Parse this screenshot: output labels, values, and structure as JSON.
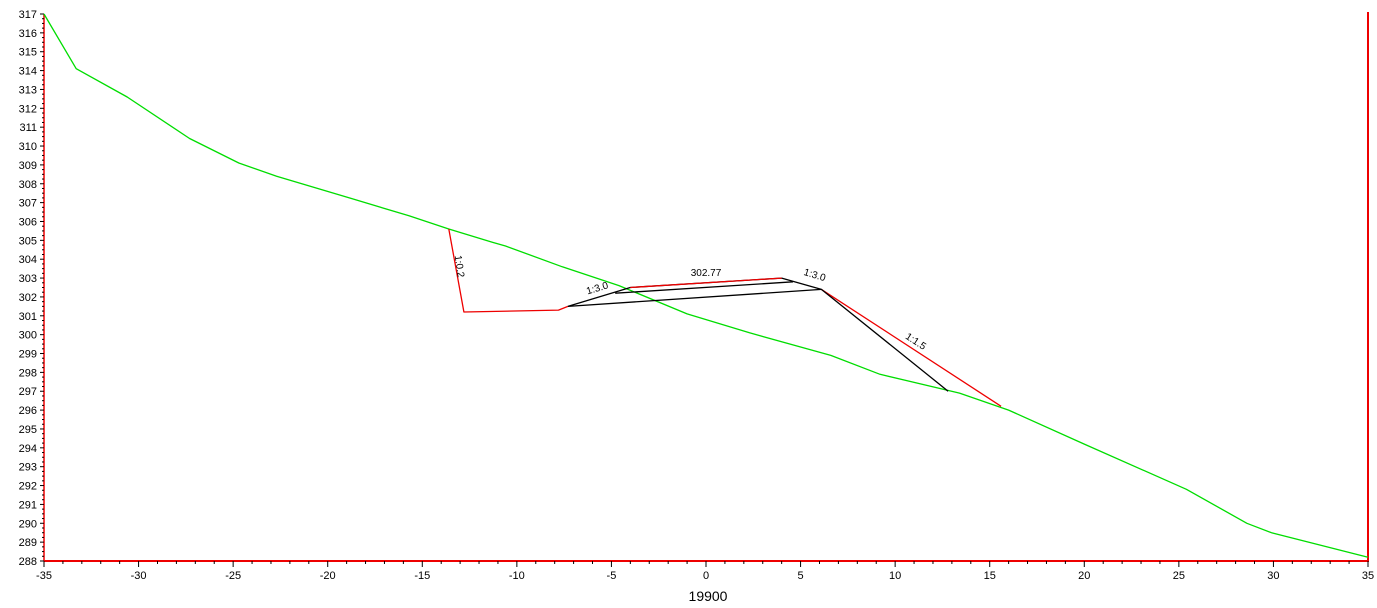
{
  "chart_data": {
    "type": "line",
    "title": "",
    "xlabel": "19900",
    "ylabel": "",
    "xlim": [
      -35,
      35
    ],
    "ylim": [
      288,
      317
    ],
    "xticks": [
      -35,
      -30,
      -25,
      -20,
      -15,
      -10,
      -5,
      0,
      5,
      10,
      15,
      20,
      25,
      30,
      35
    ],
    "yticks": [
      288,
      289,
      290,
      291,
      292,
      293,
      294,
      295,
      296,
      297,
      298,
      299,
      300,
      301,
      302,
      303,
      304,
      305,
      306,
      307,
      308,
      309,
      310,
      311,
      312,
      313,
      314,
      315,
      316,
      317
    ],
    "grid": false,
    "colors": {
      "ground": "#00dd00",
      "design_red": "#ee0000",
      "structure": "#000000",
      "axes": "#ee0000"
    },
    "series": [
      {
        "key": "ground",
        "color": "#00dd00",
        "points": [
          [
            -35,
            317
          ],
          [
            -33.3,
            314.1
          ],
          [
            -30.6,
            312.6
          ],
          [
            -27.3,
            310.4
          ],
          [
            -24.7,
            309.1
          ],
          [
            -22.7,
            308.4
          ],
          [
            -18.7,
            307.2
          ],
          [
            -15.7,
            306.3
          ],
          [
            -13.6,
            305.6
          ],
          [
            -11.3,
            304.9
          ],
          [
            -10.6,
            304.7
          ],
          [
            -7.6,
            303.6
          ],
          [
            -4.6,
            302.6
          ],
          [
            -1.0,
            301.1
          ],
          [
            2.3,
            300.1
          ],
          [
            6.6,
            298.9
          ],
          [
            9.2,
            297.9
          ],
          [
            13.4,
            296.9
          ],
          [
            16.0,
            296.0
          ],
          [
            20.0,
            294.2
          ],
          [
            25.4,
            291.8
          ],
          [
            28.6,
            290.0
          ],
          [
            29.9,
            289.5
          ],
          [
            35,
            288.2
          ]
        ]
      },
      {
        "key": "left-cut",
        "color": "#ee0000",
        "points": [
          [
            -13.6,
            305.6
          ],
          [
            -12.8,
            301.2
          ],
          [
            -7.8,
            301.3
          ],
          [
            -7.3,
            301.5
          ]
        ]
      },
      {
        "key": "right-fill",
        "color": "#ee0000",
        "points": [
          [
            6.1,
            302.4
          ],
          [
            15.6,
            296.2
          ]
        ]
      },
      {
        "key": "road-top",
        "color": "#000000",
        "points": [
          [
            -7.3,
            301.5
          ],
          [
            -4.0,
            302.5
          ],
          [
            4.0,
            303.0
          ],
          [
            6.1,
            302.4
          ],
          [
            12.8,
            297.0
          ]
        ]
      },
      {
        "key": "road-top-red",
        "color": "#ee0000",
        "points": [
          [
            -4.0,
            302.5
          ],
          [
            4.0,
            303.0
          ]
        ]
      },
      {
        "key": "road-subgrade",
        "color": "#000000",
        "points": [
          [
            -7.3,
            301.5
          ],
          [
            6.1,
            302.4
          ]
        ]
      },
      {
        "key": "road-inner",
        "color": "#000000",
        "points": [
          [
            -4.8,
            302.2
          ],
          [
            4.6,
            302.8
          ]
        ]
      }
    ],
    "annotations": [
      {
        "text": "1:0.2",
        "x": -13.2,
        "y": 303.6,
        "angle": 82
      },
      {
        "text": "1:3.0",
        "x": -5.7,
        "y": 302.3,
        "angle": -17
      },
      {
        "text": "302.77",
        "x": 0.0,
        "y": 303.1,
        "angle": 0
      },
      {
        "text": "1:3.0",
        "x": 5.7,
        "y": 303.0,
        "angle": 17
      },
      {
        "text": "1:1.5",
        "x": 11.0,
        "y": 299.5,
        "angle": 33
      }
    ]
  }
}
